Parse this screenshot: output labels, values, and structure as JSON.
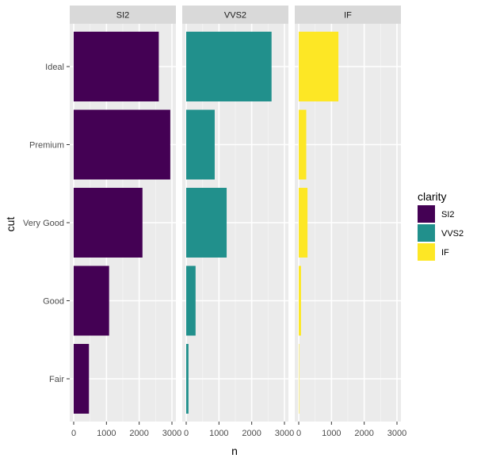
{
  "chart_data": {
    "type": "bar",
    "orientation": "horizontal",
    "facet_by": "clarity",
    "xlabel": "n",
    "ylabel": "cut",
    "xlim": [
      0,
      3000
    ],
    "x_ticks": [
      0,
      1000,
      2000,
      3000
    ],
    "x_tick_labels": [
      "0",
      "1000",
      "2000",
      "3000"
    ],
    "grid": true,
    "categories": [
      "Ideal",
      "Premium",
      "Very Good",
      "Good",
      "Fair"
    ],
    "series": [
      {
        "name": "SI2",
        "color": "#440154",
        "values": [
          2598,
          2949,
          2100,
          1081,
          466
        ]
      },
      {
        "name": "VVS2",
        "color": "#21908C",
        "values": [
          2606,
          870,
          1235,
          286,
          69
        ]
      },
      {
        "name": "IF",
        "color": "#FDE725",
        "values": [
          1212,
          230,
          268,
          71,
          9
        ]
      }
    ],
    "legend": {
      "title": "clarity",
      "position": "right",
      "entries": [
        "SI2",
        "VVS2",
        "IF"
      ]
    }
  }
}
